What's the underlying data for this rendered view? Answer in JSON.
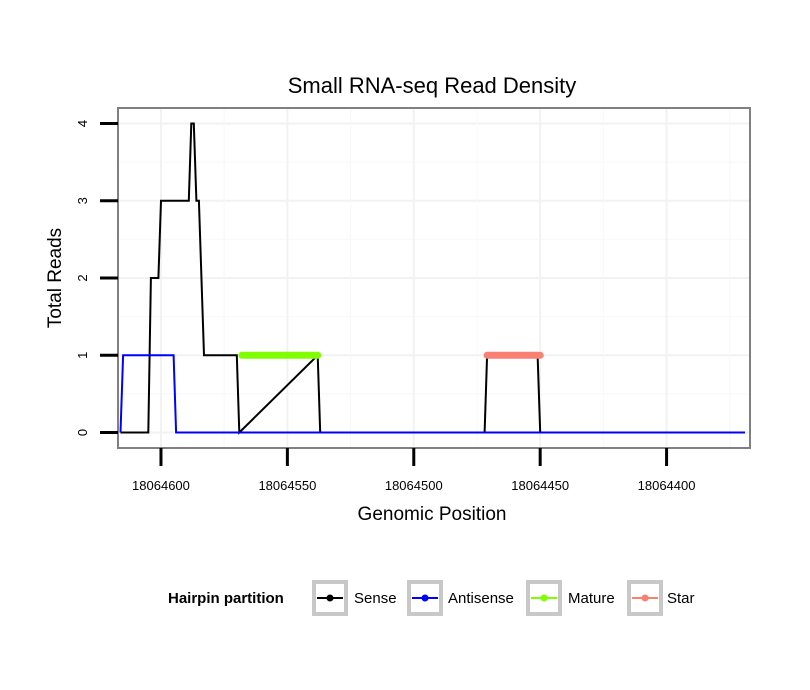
{
  "chart_data": {
    "type": "line",
    "title": "Small RNA-seq Read Density",
    "xlabel": "Genomic Position",
    "ylabel": "Total Reads",
    "xlim": [
      18064617,
      18064367
    ],
    "ylim": [
      -0.2,
      4.2
    ],
    "x_reversed": true,
    "xticks": [
      18064600,
      18064550,
      18064500,
      18064450,
      18064400
    ],
    "xtick_labels": [
      "18064600",
      "18064550",
      "18064500",
      "18064450",
      "18064400"
    ],
    "yticks": [
      0,
      1,
      2,
      3,
      4
    ],
    "ytick_labels": [
      "0",
      "1",
      "2",
      "3",
      "4"
    ],
    "grid": true,
    "legend": {
      "title": "Hairpin partition",
      "position": "bottom",
      "entries": [
        {
          "name": "Sense",
          "color": "#000000"
        },
        {
          "name": "Antisense",
          "color": "#0000ff"
        },
        {
          "name": "Mature",
          "color": "#7fff00"
        },
        {
          "name": "Star",
          "color": "#fa8072"
        }
      ]
    },
    "series": [
      {
        "name": "Sense",
        "color": "#000000",
        "x": [
          18064616,
          18064605,
          18064604,
          18064601,
          18064600,
          18064589,
          18064588,
          18064587,
          18064586,
          18064585,
          18064583,
          18064582,
          18064581,
          18064570,
          18064569,
          18064538,
          18064537,
          18064472,
          18064471,
          18064451,
          18064450,
          18064369
        ],
        "y": [
          0,
          0,
          2,
          2,
          3,
          3,
          4,
          4,
          3,
          3,
          1,
          1,
          1,
          1,
          0,
          1,
          0,
          0,
          1,
          1,
          0,
          0
        ]
      },
      {
        "name": "Antisense",
        "color": "#0000ff",
        "x": [
          18064616,
          18064615,
          18064595,
          18064594,
          18064369
        ],
        "y": [
          0,
          1,
          1,
          0,
          0
        ]
      },
      {
        "name": "Mature",
        "color": "#7fff00",
        "x": [
          18064568,
          18064538
        ],
        "y": [
          1,
          1
        ]
      },
      {
        "name": "Star",
        "color": "#fa8072",
        "x": [
          18064471,
          18064450
        ],
        "y": [
          1,
          1
        ]
      }
    ]
  }
}
